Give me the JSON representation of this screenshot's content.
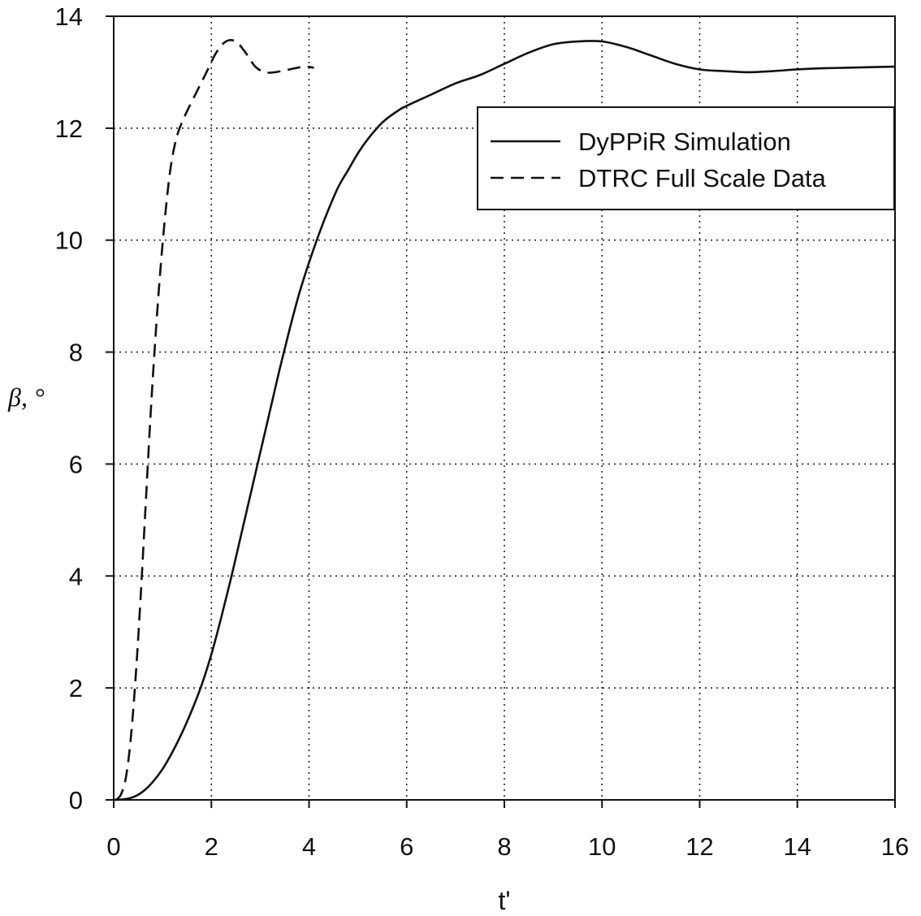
{
  "chart_data": {
    "type": "line",
    "title": "",
    "xlabel": "t'",
    "ylabel": "β, °",
    "xlim": [
      0,
      16
    ],
    "ylim": [
      0,
      14
    ],
    "xticks": [
      0,
      2,
      4,
      6,
      8,
      10,
      12,
      14,
      16
    ],
    "yticks": [
      0,
      2,
      4,
      6,
      8,
      10,
      12,
      14
    ],
    "grid": true,
    "legend_position": "top-right",
    "series": [
      {
        "name": "DyPPiR Simulation",
        "style": "solid",
        "color": "#111111",
        "x": [
          0,
          0.2,
          0.4,
          0.6,
          0.8,
          1.0,
          1.2,
          1.4,
          1.6,
          1.8,
          2.0,
          2.2,
          2.4,
          2.6,
          2.8,
          3.0,
          3.2,
          3.4,
          3.6,
          3.8,
          4.0,
          4.2,
          4.4,
          4.6,
          4.8,
          5.0,
          5.2,
          5.5,
          5.8,
          6.0,
          6.5,
          7.0,
          7.5,
          8.0,
          8.5,
          9.0,
          9.5,
          10.0,
          10.5,
          11.0,
          11.5,
          12.0,
          12.5,
          13.0,
          13.5,
          14.0,
          14.5,
          15.0,
          15.5,
          16.0
        ],
        "y": [
          0,
          0.01,
          0.05,
          0.15,
          0.32,
          0.55,
          0.85,
          1.2,
          1.6,
          2.05,
          2.6,
          3.25,
          3.95,
          4.7,
          5.45,
          6.2,
          6.95,
          7.7,
          8.4,
          9.05,
          9.6,
          10.1,
          10.55,
          10.95,
          11.25,
          11.55,
          11.8,
          12.1,
          12.3,
          12.4,
          12.6,
          12.8,
          12.95,
          13.15,
          13.35,
          13.5,
          13.55,
          13.55,
          13.45,
          13.3,
          13.15,
          13.05,
          13.02,
          13.0,
          13.02,
          13.05,
          13.07,
          13.08,
          13.09,
          13.1
        ]
      },
      {
        "name": "DTRC Full Scale Data",
        "style": "dashed",
        "color": "#111111",
        "x": [
          0.05,
          0.15,
          0.25,
          0.35,
          0.45,
          0.55,
          0.65,
          0.75,
          0.85,
          0.95,
          1.05,
          1.15,
          1.25,
          1.35,
          1.5,
          1.7,
          1.9,
          2.1,
          2.3,
          2.5,
          2.7,
          2.9,
          3.1,
          3.3,
          3.6,
          3.9,
          4.1
        ],
        "y": [
          0,
          0.1,
          0.4,
          1.1,
          2.2,
          3.6,
          5.2,
          6.8,
          8.2,
          9.4,
          10.4,
          11.2,
          11.7,
          12.0,
          12.3,
          12.65,
          13.0,
          13.35,
          13.55,
          13.55,
          13.35,
          13.1,
          13.0,
          13.0,
          13.05,
          13.1,
          13.08
        ]
      }
    ]
  }
}
